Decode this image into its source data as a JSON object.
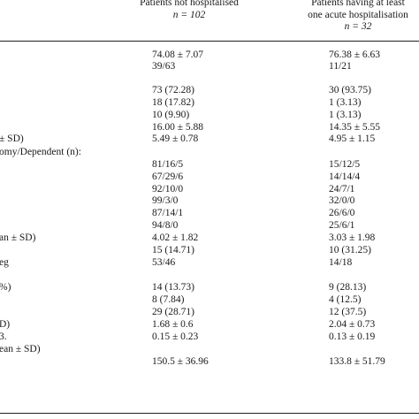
{
  "header": {
    "col1": [
      "Patients not hospitalised",
      "n = 102"
    ],
    "col2": [
      "Patients having at least",
      "one acute hospitalisation",
      "n = 32"
    ]
  },
  "rows": [
    {
      "label": "",
      "c1": "74.08 ± 7.07",
      "c2": "76.38 ± 6.63"
    },
    {
      "label": "",
      "c1": "39/63",
      "c2": "11/21"
    },
    {
      "label": "",
      "c1": "",
      "c2": ""
    },
    {
      "label": "",
      "c1": "73 (72.28)",
      "c2": "30 (93.75)"
    },
    {
      "label": "",
      "c1": "18 (17.82)",
      "c2": "1 (3.13)"
    },
    {
      "label": "",
      "c1": "10 (9.90)",
      "c2": "1 (3.13)"
    },
    {
      "label": "",
      "c1": "16.00 ± 5.88",
      "c2": "14.35 ± 5.55"
    },
    {
      "label": "± SD)",
      "c1": "5.49 ± 0.78",
      "c2": "4.95 ± 1.15"
    },
    {
      "label": "omy/Dependent (n):",
      "c1": "",
      "c2": ""
    },
    {
      "label": "",
      "c1": "81/16/5",
      "c2": "15/12/5"
    },
    {
      "label": "",
      "c1": "67/29/6",
      "c2": "14/14/4"
    },
    {
      "label": "",
      "c1": "92/10/0",
      "c2": "24/7/1"
    },
    {
      "label": "",
      "c1": "99/3/0",
      "c2": "32/0/0"
    },
    {
      "label": "",
      "c1": "87/14/1",
      "c2": "26/6/0"
    },
    {
      "label": "",
      "c1": "94/8/0",
      "c2": "25/6/1"
    },
    {
      "label": "an ± SD)",
      "c1": "4.02 ± 1.82",
      "c2": "3.03 ± 1.98"
    },
    {
      "label": "",
      "c1": "15 (14.71)",
      "c2": "10 (31.25)"
    },
    {
      "label": "eg",
      "c1": "53/46",
      "c2": "14/18"
    },
    {
      "label": "",
      "c1": "",
      "c2": ""
    },
    {
      "label": "%)",
      "c1": "14 (13.73)",
      "c2": "9 (28.13)"
    },
    {
      "label": "",
      "c1": "8 (7.84)",
      "c2": "4 (12.5)"
    },
    {
      "label": "",
      "c1": "29 (28.71)",
      "c2": "12 (37.5)"
    },
    {
      "label": "D)",
      "c1": "1.68 ± 0.6",
      "c2": "2.04 ± 0.73"
    },
    {
      "label": "3.",
      "c1": "0.15 ± 0.23",
      "c2": "0.13 ± 0.19"
    },
    {
      "label": "ean ± SD)",
      "c1": "",
      "c2": ""
    },
    {
      "label": "",
      "c1": "150.5 ± 36.96",
      "c2": "133.8 ± 51.79"
    }
  ]
}
